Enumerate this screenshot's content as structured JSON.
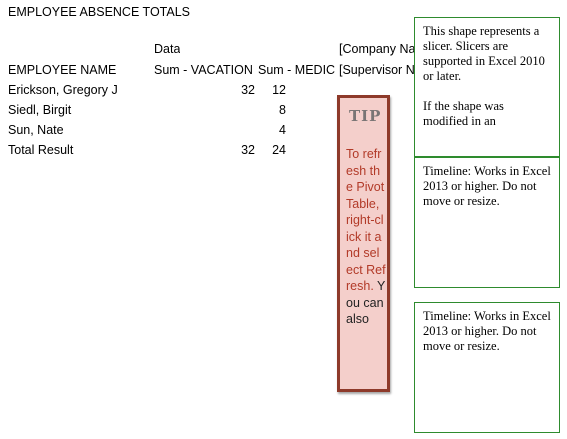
{
  "sheet": {
    "title": "EMPLOYEE ABSENCE TOTALS",
    "data_label": "Data",
    "company_header": "[Company Na",
    "headers": {
      "employee": "EMPLOYEE NAME",
      "vacation": "Sum - VACATION",
      "medical": "Sum - MEDIC",
      "supervisor": "[Supervisor N"
    },
    "rows": [
      {
        "name": "Erickson, Gregory J",
        "vacation": "32",
        "medical": "12"
      },
      {
        "name": "Siedl, Birgit",
        "vacation": "",
        "medical": "8"
      },
      {
        "name": "Sun, Nate",
        "vacation": "",
        "medical": "4"
      },
      {
        "name": "Total Result",
        "vacation": "32",
        "medical": "24"
      }
    ]
  },
  "tip": {
    "title": "TIP",
    "text": "To refresh the Pivot Table, right-click it and select Refresh.",
    "overflow_text": "You can also"
  },
  "slicer_note": {
    "text": "This shape represents a slicer. Slicers are supported in Excel 2010 or later.",
    "text2": "If the shape was modified in an"
  },
  "timeline_notes": [
    {
      "text": "Timeline: Works in Excel 2013 or higher. Do not move or resize."
    },
    {
      "text": "Timeline: Works in Excel 2013 or higher. Do not move or resize."
    }
  ]
}
